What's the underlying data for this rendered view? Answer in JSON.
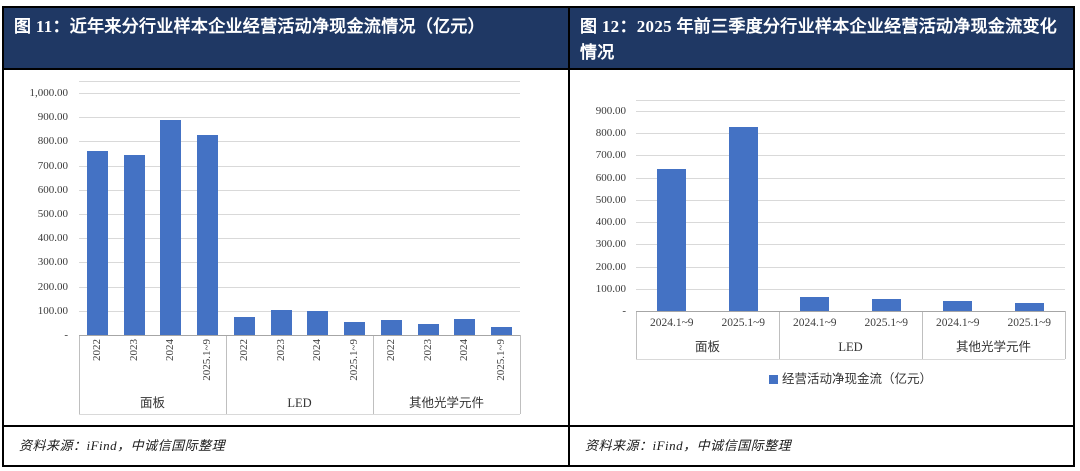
{
  "colors": {
    "title_bar_bg": "#1F3864",
    "title_text": "#FFFFFF",
    "bar_fill": "#4472C4",
    "gridline": "#D9D9D9",
    "table_border": "#000000"
  },
  "panels": [
    {
      "title": "图 11：近年来分行业样本企业经营活动净现金流情况（亿元）",
      "source": "资料来源：iFind，中诚信国际整理"
    },
    {
      "title": "图 12：2025 年前三季度分行业样本企业经营活动净现金流变化情况",
      "source": "资料来源：iFind，中诚信国际整理"
    }
  ],
  "chart_data": [
    {
      "type": "bar",
      "title": "近年来分行业样本企业经营活动净现金流情况（亿元）",
      "xlabel": "",
      "ylabel": "",
      "ylim": [
        0,
        1000
      ],
      "ytick_interval": 100,
      "ytick_labels": [
        "1,000.00",
        "900.00",
        "800.00",
        "700.00",
        "600.00",
        "500.00",
        "400.00",
        "300.00",
        "200.00",
        "100.00",
        "-"
      ],
      "grid": true,
      "legend": null,
      "x_tick_style": "rotated-90",
      "bar_color": "#4472C4",
      "groups": [
        {
          "label": "面板",
          "categories": [
            "2022",
            "2023",
            "2024",
            "2025.1~9"
          ],
          "values": [
            760,
            745,
            890,
            825
          ]
        },
        {
          "label": "LED",
          "categories": [
            "2022",
            "2023",
            "2024",
            "2025.1~9"
          ],
          "values": [
            75,
            105,
            100,
            55
          ]
        },
        {
          "label": "其他光学元件",
          "categories": [
            "2022",
            "2023",
            "2024",
            "2025.1~9"
          ],
          "values": [
            60,
            45,
            65,
            35
          ]
        }
      ]
    },
    {
      "type": "bar",
      "title": "2025 年前三季度分行业样本企业经营活动净现金流变化情况",
      "xlabel": "",
      "ylabel": "",
      "ylim": [
        0,
        900
      ],
      "ytick_interval": 100,
      "ytick_labels": [
        "900.00",
        "800.00",
        "700.00",
        "600.00",
        "500.00",
        "400.00",
        "300.00",
        "200.00",
        "100.00",
        "-"
      ],
      "grid": true,
      "legend": {
        "label": "经营活动净现金流（亿元）",
        "color": "#4472C4",
        "position": "bottom"
      },
      "x_tick_style": "horizontal",
      "bar_color": "#4472C4",
      "groups": [
        {
          "label": "面板",
          "categories": [
            "2024.1~9",
            "2025.1~9"
          ],
          "values": [
            640,
            830
          ]
        },
        {
          "label": "LED",
          "categories": [
            "2024.1~9",
            "2025.1~9"
          ],
          "values": [
            62,
            53
          ]
        },
        {
          "label": "其他光学元件",
          "categories": [
            "2024.1~9",
            "2025.1~9"
          ],
          "values": [
            44,
            38
          ]
        }
      ]
    }
  ]
}
